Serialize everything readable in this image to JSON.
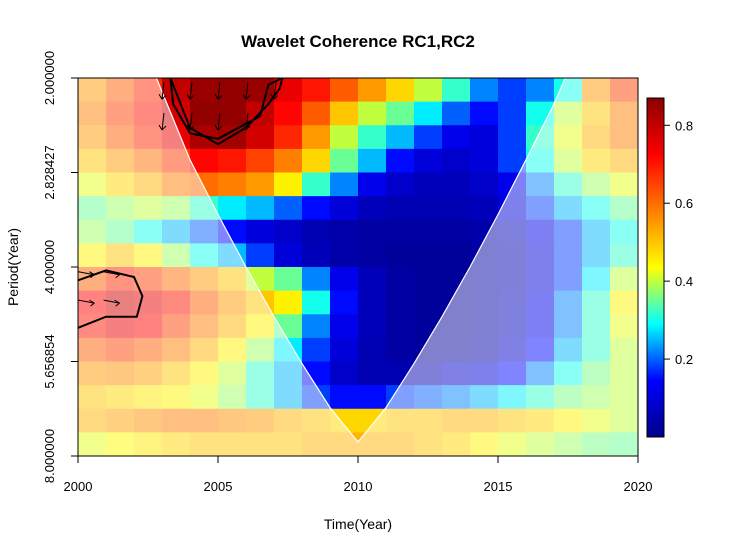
{
  "chart_data": {
    "type": "heatmap",
    "title": "Wavelet Coherence RC1,RC2",
    "xlabel": "Time(Year)",
    "ylabel": "Period(Year)",
    "xlim": [
      2000,
      2020
    ],
    "x_ticks": [
      2000,
      2005,
      2010,
      2015,
      2020
    ],
    "x_tick_labels": [
      "2000",
      "2005",
      "2010",
      "2015",
      "2020"
    ],
    "y_scale": "log2",
    "y_ticks": [
      2.0,
      2.828427,
      4.0,
      5.656854,
      8.0
    ],
    "y_tick_labels": [
      "2.000000",
      "2.828427",
      "4.000000",
      "5.656854",
      "8.000000"
    ],
    "ylim": [
      2.0,
      8.0
    ],
    "y_inverted": true,
    "colorbar": {
      "range": [
        0,
        0.87
      ],
      "ticks": [
        0.2,
        0.4,
        0.6,
        0.8
      ],
      "tick_labels": [
        "0.2",
        "0.4",
        "0.6",
        "0.8"
      ],
      "colors": [
        "#00008b",
        "#0000ff",
        "#00ffff",
        "#ffff00",
        "#ff7f00",
        "#ff0000",
        "#8b0000"
      ]
    },
    "time": [
      2000,
      2001,
      2002,
      2003,
      2004,
      2005,
      2006,
      2007,
      2008,
      2009,
      2010,
      2011,
      2012,
      2013,
      2014,
      2015,
      2016,
      2017,
      2018,
      2019
    ],
    "periods": [
      2.0,
      2.18,
      2.38,
      2.59,
      2.83,
      3.08,
      3.36,
      3.67,
      4.0,
      4.36,
      4.76,
      5.19,
      5.66,
      6.17,
      6.73,
      7.34
    ],
    "coherence": [
      [
        0.55,
        0.62,
        0.68,
        0.8,
        0.85,
        0.86,
        0.85,
        0.75,
        0.7,
        0.62,
        0.55,
        0.48,
        0.4,
        0.32,
        0.22,
        0.18,
        0.22,
        0.3,
        0.55,
        0.65
      ],
      [
        0.58,
        0.65,
        0.7,
        0.78,
        0.86,
        0.86,
        0.8,
        0.72,
        0.62,
        0.5,
        0.4,
        0.35,
        0.28,
        0.2,
        0.15,
        0.18,
        0.3,
        0.4,
        0.5,
        0.58
      ],
      [
        0.55,
        0.62,
        0.68,
        0.75,
        0.83,
        0.84,
        0.78,
        0.68,
        0.55,
        0.4,
        0.32,
        0.25,
        0.18,
        0.12,
        0.1,
        0.18,
        0.32,
        0.42,
        0.52,
        0.58
      ],
      [
        0.5,
        0.55,
        0.6,
        0.66,
        0.72,
        0.7,
        0.65,
        0.58,
        0.48,
        0.35,
        0.25,
        0.15,
        0.1,
        0.08,
        0.1,
        0.18,
        0.3,
        0.4,
        0.48,
        0.52
      ],
      [
        0.42,
        0.48,
        0.52,
        0.58,
        0.6,
        0.58,
        0.55,
        0.45,
        0.32,
        0.22,
        0.12,
        0.08,
        0.06,
        0.06,
        0.08,
        0.12,
        0.22,
        0.32,
        0.38,
        0.42
      ],
      [
        0.35,
        0.38,
        0.4,
        0.38,
        0.32,
        0.28,
        0.25,
        0.2,
        0.15,
        0.1,
        0.06,
        0.05,
        0.05,
        0.05,
        0.06,
        0.1,
        0.18,
        0.25,
        0.3,
        0.35
      ],
      [
        0.38,
        0.35,
        0.3,
        0.25,
        0.2,
        0.15,
        0.1,
        0.08,
        0.05,
        0.04,
        0.03,
        0.03,
        0.03,
        0.03,
        0.04,
        0.06,
        0.12,
        0.18,
        0.25,
        0.3
      ],
      [
        0.45,
        0.5,
        0.45,
        0.38,
        0.3,
        0.25,
        0.18,
        0.1,
        0.06,
        0.04,
        0.03,
        0.02,
        0.02,
        0.02,
        0.03,
        0.05,
        0.1,
        0.18,
        0.25,
        0.32
      ],
      [
        0.62,
        0.68,
        0.65,
        0.6,
        0.55,
        0.5,
        0.4,
        0.35,
        0.22,
        0.12,
        0.06,
        0.03,
        0.02,
        0.02,
        0.03,
        0.05,
        0.1,
        0.18,
        0.28,
        0.4
      ],
      [
        0.72,
        0.78,
        0.75,
        0.7,
        0.62,
        0.55,
        0.5,
        0.45,
        0.3,
        0.15,
        0.06,
        0.03,
        0.02,
        0.02,
        0.03,
        0.06,
        0.12,
        0.22,
        0.32,
        0.45
      ],
      [
        0.7,
        0.75,
        0.72,
        0.65,
        0.58,
        0.52,
        0.45,
        0.35,
        0.22,
        0.12,
        0.06,
        0.03,
        0.02,
        0.02,
        0.03,
        0.06,
        0.12,
        0.22,
        0.32,
        0.42
      ],
      [
        0.62,
        0.65,
        0.62,
        0.58,
        0.52,
        0.45,
        0.38,
        0.28,
        0.18,
        0.1,
        0.05,
        0.03,
        0.02,
        0.02,
        0.04,
        0.08,
        0.15,
        0.25,
        0.32,
        0.4
      ],
      [
        0.55,
        0.56,
        0.54,
        0.5,
        0.45,
        0.4,
        0.32,
        0.25,
        0.15,
        0.08,
        0.05,
        0.05,
        0.05,
        0.08,
        0.1,
        0.15,
        0.22,
        0.3,
        0.36,
        0.4
      ],
      [
        0.5,
        0.48,
        0.46,
        0.45,
        0.42,
        0.38,
        0.32,
        0.25,
        0.18,
        0.15,
        0.15,
        0.18,
        0.2,
        0.22,
        0.25,
        0.28,
        0.32,
        0.36,
        0.38,
        0.4
      ],
      [
        0.52,
        0.54,
        0.56,
        0.58,
        0.58,
        0.56,
        0.55,
        0.52,
        0.5,
        0.48,
        0.48,
        0.5,
        0.5,
        0.52,
        0.52,
        0.5,
        0.48,
        0.45,
        0.42,
        0.4
      ],
      [
        0.42,
        0.44,
        0.46,
        0.48,
        0.5,
        0.5,
        0.5,
        0.5,
        0.52,
        0.52,
        0.52,
        0.52,
        0.5,
        0.48,
        0.45,
        0.42,
        0.4,
        0.38,
        0.36,
        0.35
      ]
    ],
    "cone_of_influence": {
      "x": [
        2002.8,
        2004.0,
        2005.0,
        2006.0,
        2007.0,
        2008.0,
        2009.0,
        2010.0,
        2011.0,
        2012.0,
        2013.0,
        2014.0,
        2015.0,
        2016.0,
        2017.0,
        2017.4
      ],
      "period": [
        2.0,
        2.7,
        3.3,
        4.0,
        4.8,
        5.7,
        6.7,
        7.6,
        6.7,
        5.7,
        4.8,
        4.0,
        3.3,
        2.7,
        2.2,
        2.0
      ]
    },
    "significance_contours": [
      {
        "time": [
          2003.3,
          2004.0,
          2005.0,
          2006.0,
          2006.8,
          2007.2,
          2007.3,
          2006.8,
          2006.5,
          2005.0,
          2004.0,
          2003.4,
          2003.3
        ],
        "period": [
          2.0,
          2.4,
          2.55,
          2.4,
          2.2,
          2.08,
          2.0,
          2.05,
          2.3,
          2.5,
          2.45,
          2.2,
          2.0
        ]
      },
      {
        "time": [
          2000.0,
          2001.0,
          2002.0,
          2002.3,
          2002.1,
          2001.0,
          2000.0
        ],
        "period": [
          4.2,
          4.05,
          4.15,
          4.45,
          4.8,
          4.8,
          5.0
        ]
      }
    ],
    "phase_arrows": {
      "direction": "down",
      "points": [
        {
          "time": 2003.0,
          "period": 2.1
        },
        {
          "time": 2004.0,
          "period": 2.1
        },
        {
          "time": 2005.0,
          "period": 2.1
        },
        {
          "time": 2006.0,
          "period": 2.1
        },
        {
          "time": 2007.0,
          "period": 2.1
        },
        {
          "time": 2003.0,
          "period": 2.35
        },
        {
          "time": 2004.0,
          "period": 2.35
        },
        {
          "time": 2005.0,
          "period": 2.35
        },
        {
          "time": 2006.0,
          "period": 2.35
        },
        {
          "time": 2000.3,
          "period": 4.1
        },
        {
          "time": 2001.2,
          "period": 4.1
        },
        {
          "time": 2000.3,
          "period": 4.55
        },
        {
          "time": 2001.2,
          "period": 4.55
        }
      ]
    }
  }
}
